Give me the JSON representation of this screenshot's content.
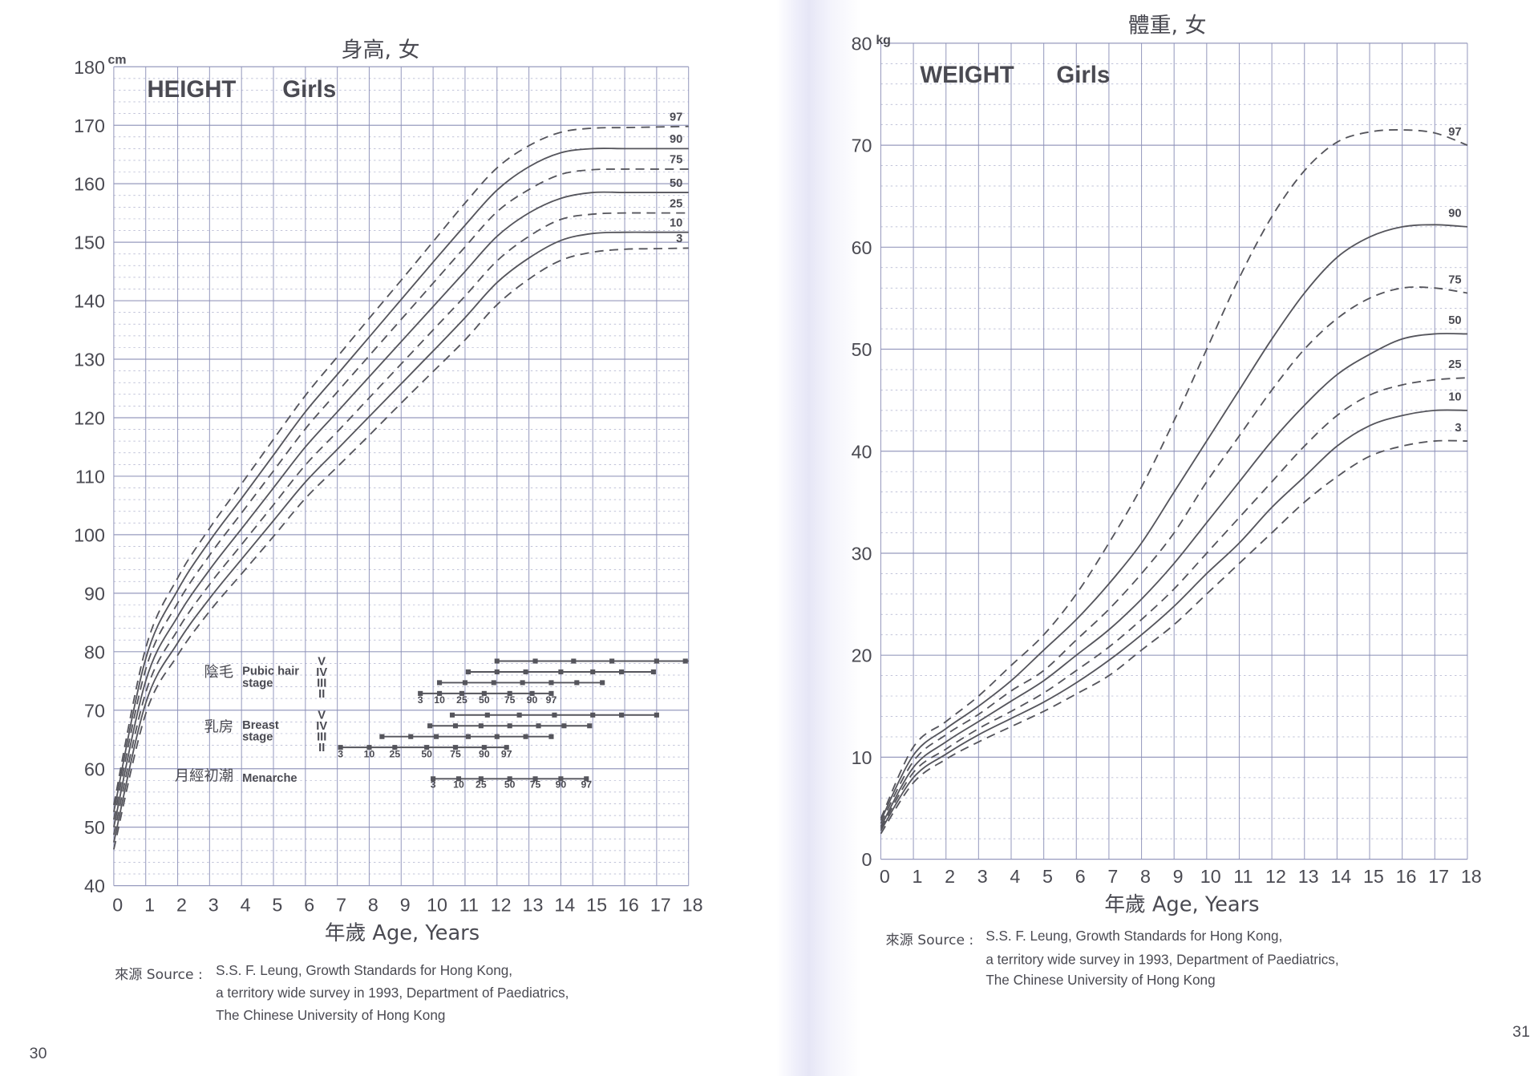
{
  "page_numbers": {
    "left": "30",
    "right": "31"
  },
  "source": {
    "label": "來源 Source :",
    "lines": [
      "S.S. F. Leung, Growth Standards for Hong Kong,",
      "a territory wide survey in 1993, Department of Paediatrics,",
      "The Chinese University of Hong Kong"
    ]
  },
  "colors": {
    "grid": "#8c90b8",
    "curve": "#55555c",
    "text": "#4a4a52"
  },
  "chart_data": [
    {
      "type": "line",
      "title_cn": "身高, 女",
      "title": "HEIGHT",
      "subtitle": "Girls",
      "unit": "cm",
      "xlabel": "年歲 Age, Years",
      "xlim": [
        0,
        18
      ],
      "ylim": [
        40,
        180
      ],
      "x_ticks": [
        "0",
        "1",
        "2",
        "3",
        "4",
        "5",
        "6",
        "7",
        "8",
        "9",
        "10",
        "11",
        "12",
        "13",
        "14",
        "15",
        "16",
        "17",
        "18"
      ],
      "y_ticks": [
        "40",
        "50",
        "60",
        "70",
        "80",
        "90",
        "100",
        "110",
        "120",
        "130",
        "140",
        "150",
        "160",
        "170",
        "180"
      ],
      "grid": true,
      "x": [
        0,
        1,
        2,
        3,
        4,
        5,
        6,
        7,
        8,
        9,
        10,
        11,
        12,
        13,
        14,
        15,
        16,
        17,
        18
      ],
      "series": [
        {
          "name": "97",
          "style": "dashed",
          "values": [
            53.8,
            80.6,
            92.6,
            101.1,
            108.7,
            116.3,
            123.8,
            130.4,
            137,
            143.5,
            150.1,
            156.7,
            162.7,
            166.5,
            168.8,
            169.5,
            169.6,
            169.7,
            169.8
          ]
        },
        {
          "name": "90",
          "style": "solid",
          "values": [
            52.6,
            78.8,
            90.5,
            98.9,
            106.2,
            113.6,
            121,
            127.4,
            133.8,
            140.2,
            146.6,
            152.9,
            158.9,
            162.9,
            165.3,
            166,
            166,
            166,
            166
          ]
        },
        {
          "name": "75",
          "style": "dashed",
          "values": [
            51.3,
            77,
            88.3,
            96.5,
            103.7,
            110.9,
            118.1,
            124.4,
            130.6,
            136.8,
            143,
            149.2,
            155.2,
            159,
            161.6,
            162.4,
            162.5,
            162.5,
            162.5
          ]
        },
        {
          "name": "50",
          "style": "solid",
          "values": [
            50,
            75,
            86,
            94,
            101,
            108,
            115,
            121,
            127,
            133,
            139,
            145,
            151,
            155,
            157.5,
            158.5,
            158.5,
            158.5,
            158.5
          ]
        },
        {
          "name": "25",
          "style": "dashed",
          "values": [
            48.7,
            73,
            83.7,
            91.5,
            98.3,
            105.1,
            111.9,
            117.6,
            123.4,
            129.2,
            135,
            140.8,
            146.8,
            151,
            153.9,
            154.8,
            155,
            155,
            155
          ]
        },
        {
          "name": "10",
          "style": "solid",
          "values": [
            47.4,
            71.2,
            81.5,
            89.1,
            95.8,
            102.4,
            109,
            114.6,
            120.2,
            125.8,
            131.4,
            137.1,
            143.1,
            147.3,
            150.3,
            151.5,
            151.7,
            151.7,
            151.7
          ]
        },
        {
          "name": "3",
          "style": "dashed",
          "values": [
            46.2,
            69.4,
            79.4,
            86.9,
            93.3,
            99.7,
            106.2,
            111.6,
            117,
            122.5,
            127.9,
            133.3,
            139.3,
            143.7,
            146.9,
            148.3,
            148.8,
            148.9,
            149
          ]
        }
      ],
      "puberty": {
        "percentile_labels": [
          "3",
          "10",
          "25",
          "50",
          "75",
          "90",
          "97"
        ],
        "groups": [
          {
            "name_cn": "陰毛",
            "name": [
              "Pubic hair",
              "stage"
            ],
            "stages": [
              {
                "stage": "V",
                "ages": [
                  12.0,
                  13.2,
                  14.4,
                  15.6,
                  17.0,
                  17.9,
                  null
                ]
              },
              {
                "stage": "IV",
                "ages": [
                  11.1,
                  12.0,
                  12.9,
                  14.0,
                  15.0,
                  15.9,
                  16.9
                ]
              },
              {
                "stage": "III",
                "ages": [
                  10.2,
                  11.0,
                  11.9,
                  12.8,
                  13.7,
                  14.5,
                  15.3
                ]
              },
              {
                "stage": "II",
                "ages": [
                  9.6,
                  10.2,
                  10.9,
                  11.6,
                  12.4,
                  13.1,
                  13.7
                ]
              }
            ]
          },
          {
            "name_cn": "乳房",
            "name": [
              "Breast",
              "stage"
            ],
            "stages": [
              {
                "stage": "V",
                "ages": [
                  10.6,
                  11.7,
                  12.7,
                  13.8,
                  15.0,
                  15.9,
                  17.0
                ]
              },
              {
                "stage": "IV",
                "ages": [
                  9.9,
                  10.7,
                  11.5,
                  12.4,
                  13.3,
                  14.1,
                  14.9
                ]
              },
              {
                "stage": "III",
                "ages": [
                  8.4,
                  9.3,
                  10.1,
                  11.1,
                  12.0,
                  12.9,
                  13.7
                ]
              },
              {
                "stage": "II",
                "ages": [
                  7.1,
                  8.0,
                  8.8,
                  9.8,
                  10.7,
                  11.6,
                  12.3
                ]
              }
            ]
          },
          {
            "name_cn": "月經初潮",
            "name": [
              "Menarche"
            ],
            "stages": [
              {
                "stage": "",
                "ages": [
                  10.0,
                  10.8,
                  11.5,
                  12.4,
                  13.2,
                  14.0,
                  14.8
                ]
              }
            ]
          }
        ]
      }
    },
    {
      "type": "line",
      "title_cn": "體重, 女",
      "title": "WEIGHT",
      "subtitle": "Girls",
      "unit": "kg",
      "xlabel": "年歲 Age, Years",
      "xlim": [
        0,
        18
      ],
      "ylim": [
        0,
        80
      ],
      "x_ticks": [
        "0",
        "1",
        "2",
        "3",
        "4",
        "5",
        "6",
        "7",
        "8",
        "9",
        "10",
        "11",
        "12",
        "13",
        "14",
        "15",
        "16",
        "17",
        "18"
      ],
      "y_ticks": [
        "0",
        "10",
        "20",
        "30",
        "40",
        "50",
        "60",
        "70",
        "80"
      ],
      "grid": true,
      "x": [
        0,
        1,
        2,
        3,
        4,
        5,
        6,
        7,
        8,
        9,
        10,
        11,
        12,
        13,
        14,
        15,
        16,
        17,
        18
      ],
      "series": [
        {
          "name": "97",
          "style": "dashed",
          "values": [
            4,
            11,
            13.5,
            16,
            19,
            22,
            26,
            31,
            36.5,
            43,
            50,
            57,
            63,
            67.5,
            70.3,
            71.3,
            71.5,
            71.2,
            70
          ]
        },
        {
          "name": "90",
          "style": "solid",
          "values": [
            3.8,
            10.2,
            12.8,
            15,
            17.5,
            20.5,
            23.5,
            27,
            31,
            36,
            41,
            46,
            51,
            55.5,
            59,
            61,
            62,
            62.2,
            62
          ]
        },
        {
          "name": "75",
          "style": "dashed",
          "values": [
            3.5,
            9.6,
            12.2,
            14.2,
            16.5,
            18.5,
            21.5,
            24.5,
            28,
            32,
            37,
            41.5,
            46,
            50,
            53,
            55,
            56,
            56,
            55.5
          ]
        },
        {
          "name": "50",
          "style": "solid",
          "values": [
            3.2,
            9,
            11.5,
            13.5,
            15.5,
            17.5,
            20,
            22.5,
            25.5,
            29,
            33,
            37,
            41,
            44.5,
            47.5,
            49.5,
            51,
            51.5,
            51.5
          ]
        },
        {
          "name": "25",
          "style": "dashed",
          "values": [
            3,
            8.5,
            10.8,
            12.8,
            14.5,
            16.3,
            18.5,
            20.8,
            23.5,
            26.5,
            30,
            33.5,
            37,
            40.5,
            43.5,
            45.5,
            46.5,
            47,
            47.2
          ]
        },
        {
          "name": "10",
          "style": "solid",
          "values": [
            2.8,
            8,
            10.3,
            12.2,
            13.8,
            15.4,
            17.3,
            19.5,
            22,
            24.8,
            28,
            31,
            34.5,
            37.5,
            40.5,
            42.5,
            43.5,
            44,
            44
          ]
        },
        {
          "name": "3",
          "style": "dashed",
          "values": [
            2.5,
            7.5,
            9.8,
            11.5,
            13,
            14.5,
            16.2,
            18,
            20.5,
            23,
            26,
            29,
            32,
            35,
            37.5,
            39.5,
            40.5,
            41,
            41
          ]
        }
      ]
    }
  ]
}
